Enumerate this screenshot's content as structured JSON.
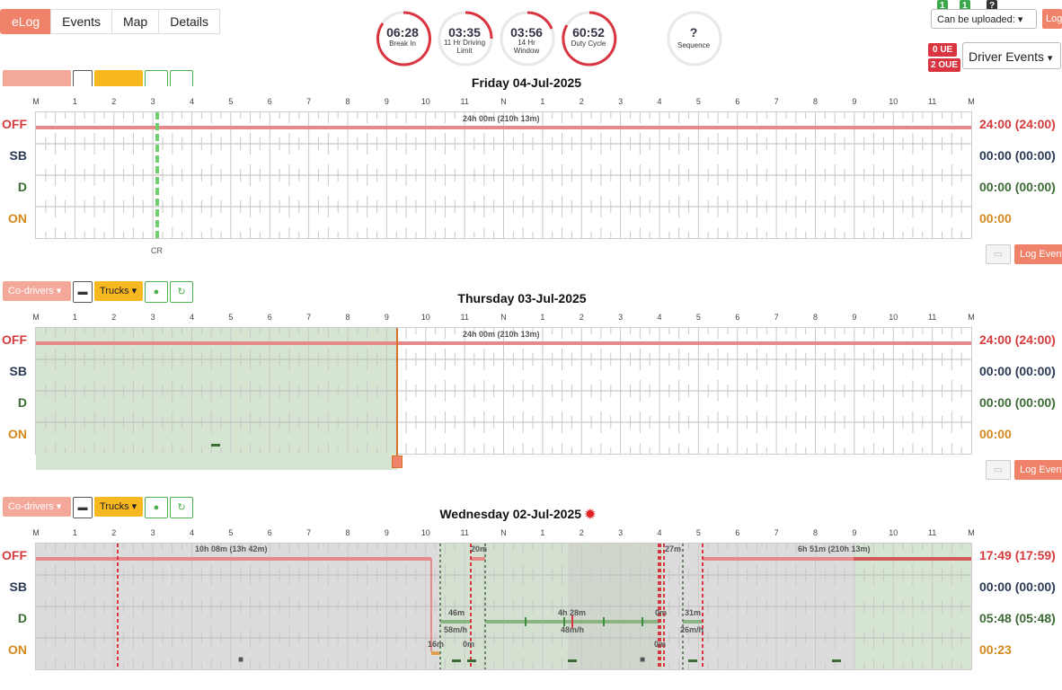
{
  "nav": {
    "tabs": [
      {
        "label": "eLog"
      },
      {
        "label": "Events"
      },
      {
        "label": "Map"
      },
      {
        "label": "Details"
      }
    ]
  },
  "gauges": [
    {
      "value": "06:28",
      "label": "Break In"
    },
    {
      "value": "03:35",
      "label": "11 Hr Driving Limit"
    },
    {
      "value": "03:56",
      "label": "14 Hr Window"
    },
    {
      "value": "60:52",
      "label": "Duty Cycle"
    },
    {
      "value": "?",
      "label": "Sequence"
    }
  ],
  "header_right": {
    "mini_badges": [
      "1",
      "1",
      "?"
    ],
    "upload_select": "Can be uploaded:",
    "ue_badge": "0 UE",
    "oue_badge": "2 OUE",
    "driver_events_select": "Driver Events",
    "cut_button": "Log"
  },
  "hours": [
    "M",
    "1",
    "2",
    "3",
    "4",
    "5",
    "6",
    "7",
    "8",
    "9",
    "10",
    "11",
    "N",
    "1",
    "2",
    "3",
    "4",
    "5",
    "6",
    "7",
    "8",
    "9",
    "10",
    "11",
    "M"
  ],
  "rows": [
    "OFF",
    "SB",
    "D",
    "ON"
  ],
  "controls": {
    "codrivers": "Co-drivers",
    "trucks": "Trucks",
    "log_event": "Log Event"
  },
  "days": [
    {
      "title": "Friday 04-Jul-2025",
      "totals": {
        "off": "24:00 (24:00)",
        "sb": "00:00 (00:00)",
        "d": "00:00 (00:00)",
        "on": "00:00"
      },
      "label": "24h 00m (210h 13m)",
      "marker": "CR"
    },
    {
      "title": "Thursday 03-Jul-2025",
      "totals": {
        "off": "24:00 (24:00)",
        "sb": "00:00 (00:00)",
        "d": "00:00 (00:00)",
        "on": "00:00"
      },
      "label": "24h 00m (210h 13m)"
    },
    {
      "title": "Wednesday 02-Jul-2025",
      "totals": {
        "off": "17:49 (17:59)",
        "sb": "00:00 (00:00)",
        "d": "05:48 (05:48)",
        "on": "00:23"
      },
      "labels": [
        "10h 08m (13h 42m)",
        "20m",
        "6h 51m (210h 13m)",
        "46m",
        "58m/h",
        "4h 28m",
        "48m/h",
        "0m",
        "27m",
        "31m",
        "26m/h",
        "16m",
        "0m",
        "0m"
      ]
    }
  ],
  "colors": {
    "accent": "#f0826a",
    "off": "#d63a3a",
    "drive": "#3d6b35",
    "on": "#d48a1a"
  }
}
